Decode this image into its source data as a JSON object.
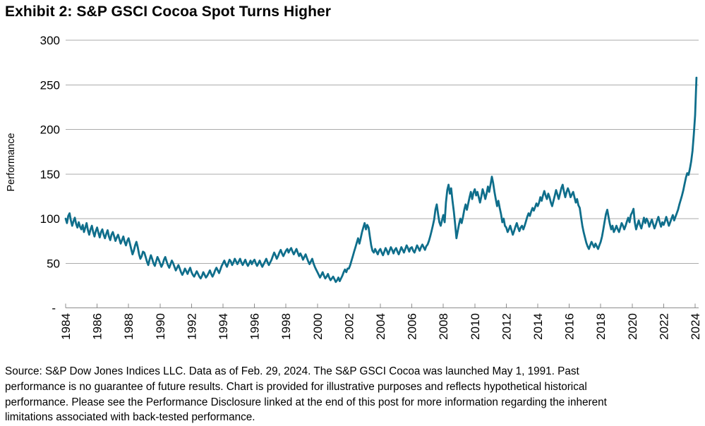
{
  "title": "Exhibit 2: S&P GSCI Cocoa Spot Turns Higher",
  "footer": {
    "lines": [
      "Source: S&P Dow Jones Indices LLC. Data as of Feb. 29, 2024. The S&P GSCI Cocoa was launched May 1, 1991. Past",
      "performance is no guarantee of future results. Chart is provided for illustrative purposes and reflects hypothetical historical",
      "performance. Please see the Performance Disclosure linked at the end of this post for more information regarding the inherent",
      "limitations associated with back-tested performance."
    ]
  },
  "chart_data": {
    "type": "line",
    "title": "Exhibit 2: S&P GSCI Cocoa Spot Turns Higher",
    "xlabel": "",
    "ylabel": "Performance",
    "ylim": [
      0,
      300
    ],
    "xlim": [
      1984,
      2024.17
    ],
    "grid": true,
    "legend": "none",
    "yticks": [
      0,
      50,
      100,
      150,
      200,
      250,
      300
    ],
    "ytick_labels": [
      "-",
      "50",
      "100",
      "150",
      "200",
      "250",
      "300"
    ],
    "xticks": [
      1984,
      1986,
      1988,
      1990,
      1992,
      1994,
      1996,
      1998,
      2000,
      2002,
      2004,
      2006,
      2008,
      2010,
      2012,
      2014,
      2016,
      2018,
      2020,
      2022,
      2024
    ],
    "line_color": "#0F6E8B",
    "grid_color": "#ABABAB",
    "axis_color": "#8C8C8C",
    "x_start": 1984,
    "x_step": 0.0833333,
    "series": [
      {
        "name": "S&P GSCI Cocoa Spot",
        "values": [
          100,
          95,
          103,
          106,
          98,
          92,
          97,
          101,
          94,
          90,
          96,
          91,
          88,
          93,
          85,
          90,
          95,
          87,
          82,
          88,
          92,
          85,
          80,
          86,
          90,
          84,
          79,
          85,
          88,
          82,
          78,
          83,
          87,
          80,
          76,
          82,
          85,
          80,
          75,
          79,
          82,
          77,
          72,
          76,
          80,
          74,
          70,
          75,
          78,
          72,
          66,
          60,
          64,
          70,
          74,
          68,
          60,
          55,
          58,
          63,
          62,
          57,
          52,
          48,
          54,
          59,
          55,
          50,
          47,
          52,
          57,
          54,
          50,
          46,
          49,
          54,
          57,
          52,
          48,
          45,
          49,
          53,
          50,
          46,
          42,
          45,
          48,
          44,
          40,
          37,
          40,
          44,
          41,
          38,
          42,
          45,
          40,
          37,
          35,
          38,
          41,
          38,
          35,
          33,
          36,
          40,
          37,
          34,
          36,
          39,
          42,
          38,
          35,
          38,
          42,
          45,
          42,
          39,
          43,
          47,
          50,
          53,
          49,
          46,
          50,
          54,
          52,
          48,
          51,
          55,
          52,
          49,
          52,
          55,
          51,
          48,
          51,
          54,
          50,
          47,
          50,
          53,
          49,
          52,
          54,
          50,
          47,
          50,
          53,
          49,
          46,
          49,
          52,
          55,
          51,
          48,
          51,
          54,
          58,
          62,
          59,
          55,
          58,
          62,
          65,
          61,
          58,
          61,
          64,
          66,
          62,
          65,
          67,
          63,
          60,
          63,
          66,
          62,
          58,
          61,
          58,
          54,
          57,
          60,
          56,
          52,
          49,
          52,
          55,
          50,
          46,
          43,
          40,
          37,
          34,
          37,
          40,
          36,
          33,
          35,
          38,
          34,
          31,
          33,
          35,
          32,
          29,
          31,
          34,
          30,
          33,
          36,
          40,
          43,
          40,
          44,
          44,
          48,
          53,
          58,
          63,
          68,
          73,
          78,
          72,
          78,
          85,
          90,
          95,
          88,
          93,
          90,
          80,
          70,
          64,
          62,
          66,
          63,
          60,
          64,
          66,
          62,
          59,
          63,
          67,
          64,
          60,
          64,
          68,
          65,
          61,
          65,
          67,
          63,
          60,
          64,
          68,
          65,
          62,
          66,
          70,
          67,
          63,
          67,
          68,
          64,
          62,
          66,
          70,
          67,
          64,
          68,
          71,
          68,
          65,
          69,
          71,
          75,
          80,
          86,
          92,
          99,
          110,
          116,
          105,
          96,
          92,
          98,
          104,
          96,
          118,
          132,
          138,
          128,
          134,
          120,
          108,
          94,
          78,
          86,
          94,
          100,
          95,
          102,
          110,
          116,
          110,
          117,
          124,
          130,
          122,
          129,
          133,
          126,
          130,
          124,
          118,
          125,
          133,
          128,
          122,
          128,
          136,
          130,
          138,
          147,
          140,
          130,
          122,
          114,
          120,
          112,
          105,
          96,
          100,
          92,
          90,
          85,
          88,
          92,
          87,
          82,
          86,
          91,
          95,
          90,
          86,
          90,
          92,
          88,
          92,
          97,
          102,
          106,
          103,
          108,
          112,
          109,
          113,
          117,
          114,
          118,
          124,
          120,
          126,
          131,
          126,
          122,
          128,
          124,
          118,
          114,
          120,
          126,
          132,
          127,
          122,
          128,
          134,
          138,
          130,
          124,
          130,
          134,
          130,
          124,
          127,
          130,
          124,
          118,
          122,
          115,
          112,
          102,
          92,
          85,
          79,
          73,
          69,
          66,
          70,
          74,
          71,
          68,
          72,
          69,
          66,
          70,
          74,
          80,
          88,
          97,
          105,
          110,
          102,
          94,
          88,
          92,
          85,
          88,
          92,
          88,
          85,
          90,
          95,
          92,
          88,
          92,
          97,
          101,
          96,
          104,
          107,
          111,
          96,
          88,
          93,
          98,
          93,
          89,
          95,
          101,
          95,
          100,
          97,
          91,
          95,
          99,
          94,
          89,
          93,
          98,
          102,
          96,
          91,
          96,
          93,
          97,
          102,
          97,
          92,
          96,
          100,
          104,
          98,
          102,
          106,
          110,
          116,
          121,
          126,
          132,
          139,
          146,
          151,
          149,
          156,
          164,
          176,
          194,
          216,
          258
        ]
      }
    ]
  }
}
